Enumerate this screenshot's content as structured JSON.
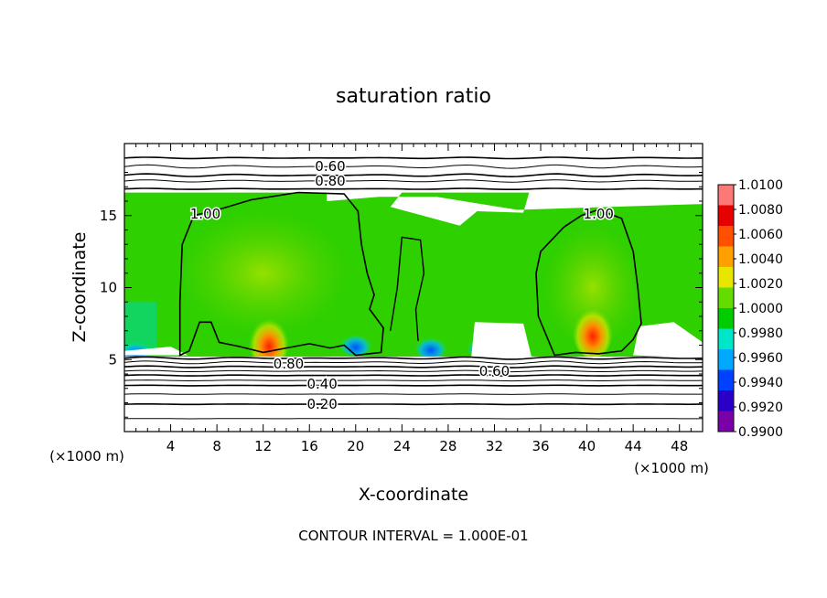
{
  "chart_data": {
    "type": "heatmap",
    "title": "saturation ratio",
    "xlabel": "X-coordinate",
    "ylabel": "Z-coordinate",
    "x_unit": "(×1000 m)",
    "z_unit": "(×1000 m)",
    "footer": "CONTOUR INTERVAL = 1.000E-01",
    "xlim": [
      0,
      50
    ],
    "ylim": [
      0,
      20
    ],
    "x_ticks": [
      4,
      8,
      12,
      16,
      20,
      24,
      28,
      32,
      36,
      40,
      44,
      48
    ],
    "y_ticks": [
      5,
      10,
      15
    ],
    "colorbar": {
      "min": 0.99,
      "max": 1.01,
      "labels": [
        "1.0100",
        "1.0080",
        "1.0060",
        "1.0040",
        "1.0020",
        "1.0000",
        "0.9980",
        "0.9960",
        "0.9940",
        "0.9920",
        "0.9900"
      ],
      "colors": [
        "#7a00a8",
        "#2a00c8",
        "#0040ff",
        "#00a8ff",
        "#00e6c8",
        "#00cc00",
        "#64dc00",
        "#e6e600",
        "#ffa000",
        "#ff5000",
        "#e60000",
        "#ff7878"
      ]
    },
    "contour_labels": [
      {
        "text": "0.60",
        "x": 17.8,
        "z": 18.4
      },
      {
        "text": "0.80",
        "x": 17.8,
        "z": 17.4
      },
      {
        "text": "1.00",
        "x": 7.0,
        "z": 15.1
      },
      {
        "text": "1.00",
        "x": 41.0,
        "z": 15.1
      },
      {
        "text": "0.80",
        "x": 14.2,
        "z": 4.7
      },
      {
        "text": "0.60",
        "x": 32.0,
        "z": 4.2
      },
      {
        "text": "0.40",
        "x": 17.1,
        "z": 3.3
      },
      {
        "text": "0.20",
        "x": 17.1,
        "z": 1.9
      }
    ],
    "moist_layer_z": [
      5.2,
      16.6
    ],
    "warm_maxima": [
      {
        "x": 12.5,
        "z": 6.3,
        "value": 1.007
      },
      {
        "x": 40.5,
        "z": 7.0,
        "value": 1.007
      }
    ]
  }
}
